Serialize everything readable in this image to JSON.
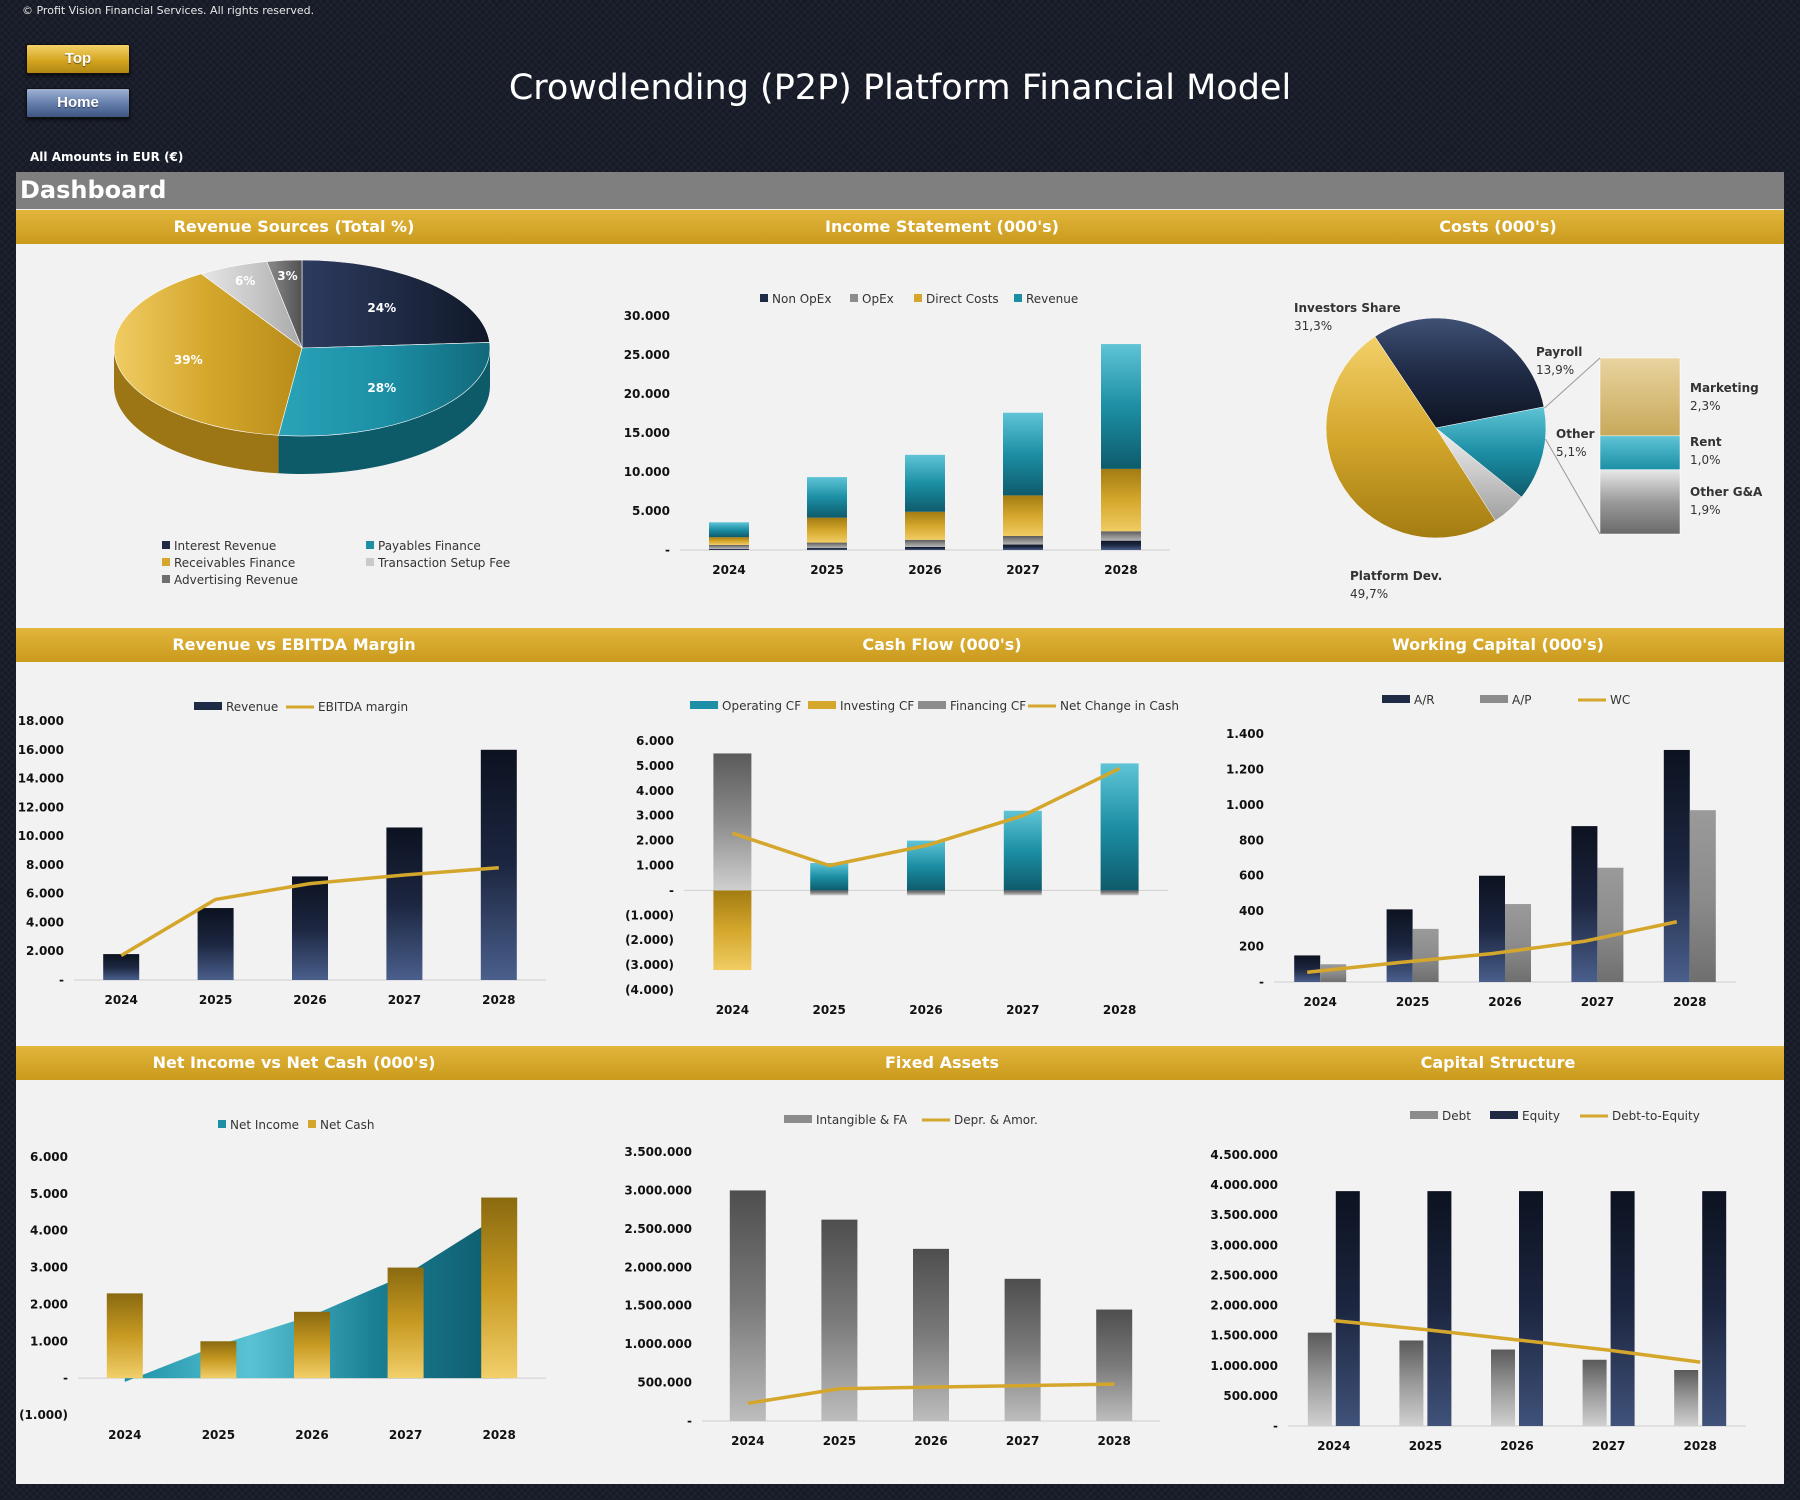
{
  "copyright": "© Profit Vision Financial Services. All rights reserved.",
  "nav": {
    "top_label": "Top",
    "home_label": "Home"
  },
  "title": "Crowdlending (P2P) Platform Financial Model",
  "amounts_note": "All Amounts in  EUR (€)",
  "dashboard_label": "Dashboard",
  "colors": {
    "navy": "#1f2a44",
    "teal": "#1c8fa5",
    "gold": "#d4a72c",
    "gray": "#8c8c8c",
    "light_gray": "#c9c9c9"
  },
  "chart_data": [
    {
      "id": "revenue_sources",
      "type": "pie",
      "title": "Revenue Sources (Total %)",
      "labels": [
        "Interest Revenue",
        "Payables Finance",
        "Receivables Finance",
        "Transaction Setup Fee",
        "Advertising Revenue"
      ],
      "values": [
        24,
        28,
        39,
        6,
        3
      ],
      "value_labels": [
        "24%",
        "28%",
        "39%",
        "6%",
        "3%"
      ],
      "colors": [
        "#1f2a44",
        "#1c8fa5",
        "#d4a72c",
        "#c9c9c9",
        "#6f6f6f"
      ],
      "legend_position": "bottom"
    },
    {
      "id": "income_statement",
      "type": "bar",
      "stacked": true,
      "title": "Income Statement (000's)",
      "categories": [
        "2024",
        "2025",
        "2026",
        "2027",
        "2028"
      ],
      "series": [
        {
          "name": "Non OpEx",
          "values": [
            150,
            250,
            400,
            700,
            1200
          ]
        },
        {
          "name": "OpEx",
          "values": [
            500,
            700,
            900,
            1100,
            1200
          ]
        },
        {
          "name": "Direct Costs",
          "values": [
            1000,
            3200,
            3600,
            5200,
            8000
          ]
        },
        {
          "name": "Revenue",
          "values": [
            1900,
            5200,
            7300,
            10600,
            16000
          ]
        }
      ],
      "yticks": [
        "30.000",
        "25.000",
        "20.000",
        "15.000",
        "10.000",
        "5.000",
        "-"
      ],
      "ylim": [
        0,
        30000
      ],
      "legend_position": "top"
    },
    {
      "id": "costs",
      "type": "pie",
      "title": "Costs (000's)",
      "labels": [
        "Investors Share",
        "Payroll",
        "Other",
        "Platform Dev."
      ],
      "values": [
        31.3,
        13.9,
        5.1,
        49.7
      ],
      "value_labels": [
        "31,3%",
        "13,9%",
        "5,1%",
        "49,7%"
      ],
      "breakdown_of": "Other",
      "breakdown": [
        {
          "label": "Marketing",
          "value_label": "2,3%",
          "value": 2.3
        },
        {
          "label": "Rent",
          "value_label": "1,0%",
          "value": 1.0
        },
        {
          "label": "Other G&A",
          "value_label": "1,9%",
          "value": 1.9
        }
      ]
    },
    {
      "id": "revenue_vs_ebitda",
      "type": "bar",
      "title": "Revenue vs EBITDA Margin",
      "categories": [
        "2024",
        "2025",
        "2026",
        "2027",
        "2028"
      ],
      "series": [
        {
          "name": "Revenue",
          "type": "bar",
          "values": [
            1800,
            5000,
            7200,
            10600,
            16000
          ]
        },
        {
          "name": "EBITDA margin",
          "type": "line",
          "values": [
            1700,
            5600,
            6700,
            7300,
            7800
          ]
        }
      ],
      "yticks": [
        "18.000",
        "16.000",
        "14.000",
        "12.000",
        "10.000",
        "8.000",
        "6.000",
        "4.000",
        "2.000",
        "-"
      ],
      "ylim": [
        0,
        18000
      ],
      "legend_position": "top"
    },
    {
      "id": "cash_flow",
      "type": "bar",
      "stacked": true,
      "title": "Cash Flow (000's)",
      "categories": [
        "2024",
        "2025",
        "2026",
        "2027",
        "2028"
      ],
      "series": [
        {
          "name": "Operating CF",
          "type": "bar",
          "values": [
            0,
            1100,
            2000,
            3200,
            5100
          ]
        },
        {
          "name": "Investing CF",
          "type": "bar",
          "values": [
            -3200,
            0,
            0,
            0,
            0
          ]
        },
        {
          "name": "Financing CF",
          "type": "bar",
          "values": [
            5500,
            -200,
            -200,
            -200,
            -200
          ]
        },
        {
          "name": "Net Change in Cash",
          "type": "line",
          "values": [
            2300,
            1000,
            1800,
            3000,
            4900
          ]
        }
      ],
      "yticks": [
        "6.000",
        "5.000",
        "4.000",
        "3.000",
        "2.000",
        "1.000",
        "-",
        "(1.000)",
        "(2.000)",
        "(3.000)",
        "(4.000)"
      ],
      "ylim": [
        -4000,
        6000
      ],
      "legend_position": "top"
    },
    {
      "id": "working_capital",
      "type": "bar",
      "title": "Working Capital (000's)",
      "categories": [
        "2024",
        "2025",
        "2026",
        "2027",
        "2028"
      ],
      "series": [
        {
          "name": "A/R",
          "type": "bar",
          "values": [
            150,
            410,
            600,
            880,
            1310
          ]
        },
        {
          "name": "A/P",
          "type": "bar",
          "values": [
            100,
            300,
            440,
            645,
            970
          ]
        },
        {
          "name": "WC",
          "type": "line",
          "values": [
            55,
            110,
            160,
            230,
            340
          ]
        }
      ],
      "yticks": [
        "1.400",
        "1.200",
        "1.000",
        "800",
        "600",
        "400",
        "200",
        "-"
      ],
      "ylim": [
        0,
        1400
      ],
      "legend_position": "top"
    },
    {
      "id": "net_income_vs_net_cash",
      "type": "area",
      "title": "Net Income vs Net Cash (000's)",
      "categories": [
        "2024",
        "2025",
        "2026",
        "2027",
        "2028"
      ],
      "series": [
        {
          "name": "Net Income",
          "type": "area",
          "values": [
            -100,
            900,
            1700,
            2800,
            4400
          ]
        },
        {
          "name": "Net Cash",
          "type": "bar",
          "values": [
            2300,
            1000,
            1800,
            3000,
            4900
          ]
        }
      ],
      "yticks": [
        "6.000",
        "5.000",
        "4.000",
        "3.000",
        "2.000",
        "1.000",
        "-",
        "(1.000)"
      ],
      "ylim": [
        -1000,
        6000
      ],
      "legend_position": "top"
    },
    {
      "id": "fixed_assets",
      "type": "bar",
      "title": "Fixed Assets",
      "categories": [
        "2024",
        "2025",
        "2026",
        "2027",
        "2028"
      ],
      "series": [
        {
          "name": "Intangible & FA",
          "type": "bar",
          "values": [
            3000000,
            2620000,
            2240000,
            1850000,
            1450000
          ]
        },
        {
          "name": "Depr. & Amor.",
          "type": "line",
          "values": [
            230000,
            420000,
            440000,
            460000,
            480000
          ]
        }
      ],
      "yticks": [
        "3.500.000",
        "3.000.000",
        "2.500.000",
        "2.000.000",
        "1.500.000",
        "1.000.000",
        "500.000",
        "-"
      ],
      "ylim": [
        0,
        3500000
      ],
      "legend_position": "top"
    },
    {
      "id": "capital_structure",
      "type": "bar",
      "title": "Capital Structure",
      "categories": [
        "2024",
        "2025",
        "2026",
        "2027",
        "2028"
      ],
      "series": [
        {
          "name": "Debt",
          "type": "bar",
          "values": [
            1550000,
            1420000,
            1270000,
            1100000,
            930000
          ]
        },
        {
          "name": "Equity",
          "type": "bar",
          "values": [
            3900000,
            3900000,
            3900000,
            3900000,
            3900000
          ]
        },
        {
          "name": "Debt-to-Equity",
          "type": "line",
          "values": [
            1750000,
            1600000,
            1430000,
            1260000,
            1060000
          ]
        }
      ],
      "yticks": [
        "4.500.000",
        "4.000.000",
        "3.500.000",
        "3.000.000",
        "2.500.000",
        "2.000.000",
        "1.500.000",
        "1.000.000",
        "500.000",
        "-"
      ],
      "ylim": [
        0,
        4500000
      ],
      "legend_position": "top"
    }
  ]
}
